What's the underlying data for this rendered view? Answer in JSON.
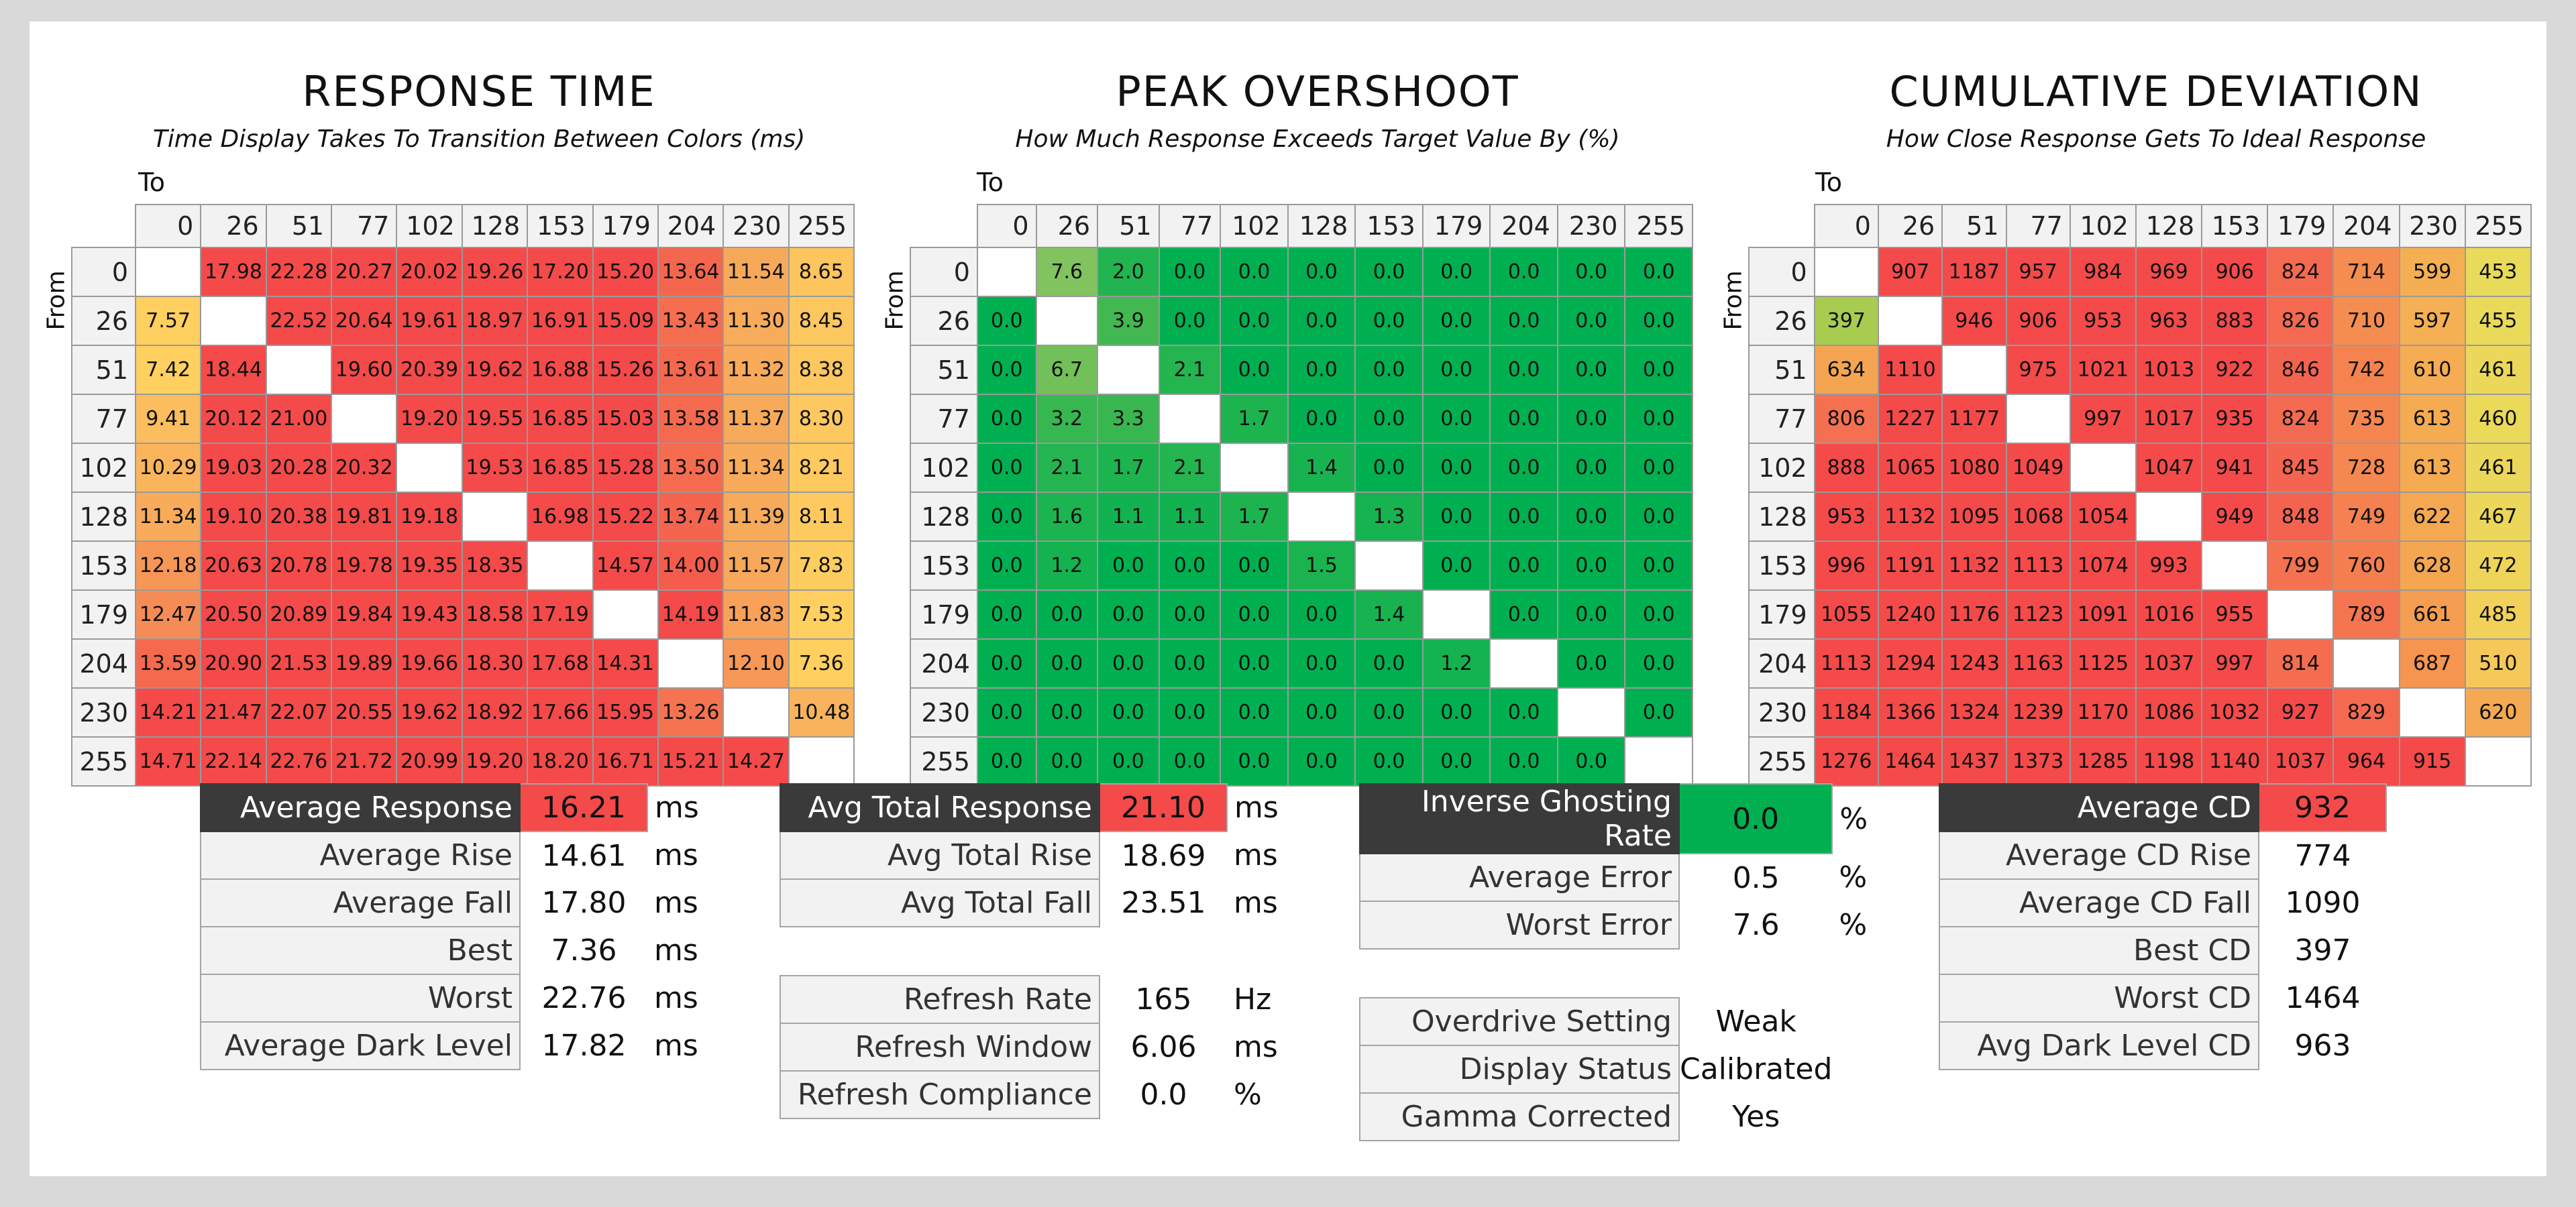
{
  "colors": {
    "red": "#f44a4a",
    "green": "#00b050",
    "yellow": "#ffe060",
    "header_dark": "#3a3a3a"
  },
  "chart_data": [
    {
      "type": "heatmap",
      "title": "RESPONSE TIME",
      "subtitle": "Time Display Takes To Transition Between Colors (ms)",
      "xlabel": "To",
      "ylabel": "From",
      "x": [
        "0",
        "26",
        "51",
        "77",
        "102",
        "128",
        "153",
        "179",
        "204",
        "230",
        "255"
      ],
      "y": [
        "0",
        "26",
        "51",
        "77",
        "102",
        "128",
        "153",
        "179",
        "204",
        "230",
        "255"
      ],
      "values": [
        [
          "",
          "17.98",
          "22.28",
          "20.27",
          "20.02",
          "19.26",
          "17.20",
          "15.20",
          "13.64",
          "11.54",
          "8.65"
        ],
        [
          "7.57",
          "",
          "22.52",
          "20.64",
          "19.61",
          "18.97",
          "16.91",
          "15.09",
          "13.43",
          "11.30",
          "8.45"
        ],
        [
          "7.42",
          "18.44",
          "",
          "19.60",
          "20.39",
          "19.62",
          "16.88",
          "15.26",
          "13.61",
          "11.32",
          "8.38"
        ],
        [
          "9.41",
          "20.12",
          "21.00",
          "",
          "19.20",
          "19.55",
          "16.85",
          "15.03",
          "13.58",
          "11.37",
          "8.30"
        ],
        [
          "10.29",
          "19.03",
          "20.28",
          "20.32",
          "",
          "19.53",
          "16.85",
          "15.28",
          "13.50",
          "11.34",
          "8.21"
        ],
        [
          "11.34",
          "19.10",
          "20.38",
          "19.81",
          "19.18",
          "",
          "16.98",
          "15.22",
          "13.74",
          "11.39",
          "8.11"
        ],
        [
          "12.18",
          "20.63",
          "20.78",
          "19.78",
          "19.35",
          "18.35",
          "",
          "14.57",
          "14.00",
          "11.57",
          "7.83"
        ],
        [
          "12.47",
          "20.50",
          "20.89",
          "19.84",
          "19.43",
          "18.58",
          "17.19",
          "",
          "14.19",
          "11.83",
          "7.53"
        ],
        [
          "13.59",
          "20.90",
          "21.53",
          "19.89",
          "19.66",
          "18.30",
          "17.68",
          "14.31",
          "",
          "12.10",
          "7.36"
        ],
        [
          "14.21",
          "21.47",
          "22.07",
          "20.55",
          "19.62",
          "18.92",
          "17.66",
          "15.95",
          "13.26",
          "",
          "10.48"
        ],
        [
          "14.71",
          "22.14",
          "22.76",
          "21.72",
          "20.99",
          "19.20",
          "18.20",
          "16.71",
          "15.21",
          "14.27",
          ""
        ]
      ],
      "color_scale": {
        "kind": "response",
        "low": 7,
        "high": 13
      }
    },
    {
      "type": "heatmap",
      "title": "PEAK OVERSHOOT",
      "subtitle": "How Much Response Exceeds Target Value By (%)",
      "xlabel": "To",
      "ylabel": "From",
      "x": [
        "0",
        "26",
        "51",
        "77",
        "102",
        "128",
        "153",
        "179",
        "204",
        "230",
        "255"
      ],
      "y": [
        "0",
        "26",
        "51",
        "77",
        "102",
        "128",
        "153",
        "179",
        "204",
        "230",
        "255"
      ],
      "values": [
        [
          "",
          "7.6",
          "2.0",
          "0.0",
          "0.0",
          "0.0",
          "0.0",
          "0.0",
          "0.0",
          "0.0",
          "0.0"
        ],
        [
          "0.0",
          "",
          "3.9",
          "0.0",
          "0.0",
          "0.0",
          "0.0",
          "0.0",
          "0.0",
          "0.0",
          "0.0"
        ],
        [
          "0.0",
          "6.7",
          "",
          "2.1",
          "0.0",
          "0.0",
          "0.0",
          "0.0",
          "0.0",
          "0.0",
          "0.0"
        ],
        [
          "0.0",
          "3.2",
          "3.3",
          "",
          "1.7",
          "0.0",
          "0.0",
          "0.0",
          "0.0",
          "0.0",
          "0.0"
        ],
        [
          "0.0",
          "2.1",
          "1.7",
          "2.1",
          "",
          "1.4",
          "0.0",
          "0.0",
          "0.0",
          "0.0",
          "0.0"
        ],
        [
          "0.0",
          "1.6",
          "1.1",
          "1.1",
          "1.7",
          "",
          "1.3",
          "0.0",
          "0.0",
          "0.0",
          "0.0"
        ],
        [
          "0.0",
          "1.2",
          "0.0",
          "0.0",
          "0.0",
          "1.5",
          "",
          "0.0",
          "0.0",
          "0.0",
          "0.0"
        ],
        [
          "0.0",
          "0.0",
          "0.0",
          "0.0",
          "0.0",
          "0.0",
          "1.4",
          "",
          "0.0",
          "0.0",
          "0.0"
        ],
        [
          "0.0",
          "0.0",
          "0.0",
          "0.0",
          "0.0",
          "0.0",
          "0.0",
          "1.2",
          "",
          "0.0",
          "0.0"
        ],
        [
          "0.0",
          "0.0",
          "0.0",
          "0.0",
          "0.0",
          "0.0",
          "0.0",
          "0.0",
          "0.0",
          "",
          "0.0"
        ],
        [
          "0.0",
          "0.0",
          "0.0",
          "0.0",
          "0.0",
          "0.0",
          "0.0",
          "0.0",
          "0.0",
          "0.0",
          ""
        ]
      ],
      "color_scale": {
        "kind": "overshoot",
        "low": 0,
        "high": 10
      }
    },
    {
      "type": "heatmap",
      "title": "CUMULATIVE DEVIATION",
      "subtitle": "How Close Response Gets To Ideal Response",
      "xlabel": "To",
      "ylabel": "From",
      "x": [
        "0",
        "26",
        "51",
        "77",
        "102",
        "128",
        "153",
        "179",
        "204",
        "230",
        "255"
      ],
      "y": [
        "0",
        "26",
        "51",
        "77",
        "102",
        "128",
        "153",
        "179",
        "204",
        "230",
        "255"
      ],
      "values": [
        [
          "",
          "907",
          "1187",
          "957",
          "984",
          "969",
          "906",
          "824",
          "714",
          "599",
          "453"
        ],
        [
          "397",
          "",
          "946",
          "906",
          "953",
          "963",
          "883",
          "826",
          "710",
          "597",
          "455"
        ],
        [
          "634",
          "1110",
          "",
          "975",
          "1021",
          "1013",
          "922",
          "846",
          "742",
          "610",
          "461"
        ],
        [
          "806",
          "1227",
          "1177",
          "",
          "997",
          "1017",
          "935",
          "824",
          "735",
          "613",
          "460"
        ],
        [
          "888",
          "1065",
          "1080",
          "1049",
          "",
          "1047",
          "941",
          "845",
          "728",
          "613",
          "461"
        ],
        [
          "953",
          "1132",
          "1095",
          "1068",
          "1054",
          "",
          "949",
          "848",
          "749",
          "622",
          "467"
        ],
        [
          "996",
          "1191",
          "1132",
          "1113",
          "1074",
          "993",
          "",
          "799",
          "760",
          "628",
          "472"
        ],
        [
          "1055",
          "1240",
          "1176",
          "1123",
          "1091",
          "1016",
          "955",
          "",
          "789",
          "661",
          "485"
        ],
        [
          "1113",
          "1294",
          "1243",
          "1163",
          "1125",
          "1037",
          "997",
          "814",
          "",
          "687",
          "510"
        ],
        [
          "1184",
          "1366",
          "1324",
          "1239",
          "1170",
          "1086",
          "1032",
          "927",
          "829",
          "",
          "620"
        ],
        [
          "1276",
          "1464",
          "1437",
          "1373",
          "1285",
          "1198",
          "1140",
          "1037",
          "964",
          "915",
          ""
        ]
      ],
      "color_scale": {
        "kind": "deviation",
        "low": 400,
        "high": 900
      }
    }
  ],
  "stats": [
    {
      "rows": [
        {
          "label": "Average Response",
          "value": "16.21",
          "unit": "ms",
          "head": true,
          "value_color": "#f44a4a"
        },
        {
          "label": "Average Rise",
          "value": "14.61",
          "unit": "ms"
        },
        {
          "label": "Average Fall",
          "value": "17.80",
          "unit": "ms"
        },
        {
          "label": "Best",
          "value": "7.36",
          "unit": "ms"
        },
        {
          "label": "Worst",
          "value": "22.76",
          "unit": "ms"
        },
        {
          "label": "Average Dark Level",
          "value": "17.82",
          "unit": "ms"
        }
      ]
    },
    {
      "rows": [
        {
          "label": "Avg Total Response",
          "value": "21.10",
          "unit": "ms",
          "head": true,
          "value_color": "#f44a4a"
        },
        {
          "label": "Avg Total Rise",
          "value": "18.69",
          "unit": "ms"
        },
        {
          "label": "Avg Total Fall",
          "value": "23.51",
          "unit": "ms"
        },
        {
          "gap": true
        },
        {
          "label": "Refresh Rate",
          "value": "165",
          "unit": "Hz"
        },
        {
          "label": "Refresh Window",
          "value": "6.06",
          "unit": "ms"
        },
        {
          "label": "Refresh Compliance",
          "value": "0.0",
          "unit": "%"
        }
      ]
    },
    {
      "rows": [
        {
          "label": "Inverse Ghosting Rate",
          "value": "0.0",
          "unit": "%",
          "head": true,
          "value_color": "#00b050"
        },
        {
          "label": "Average Error",
          "value": "0.5",
          "unit": "%"
        },
        {
          "label": "Worst Error",
          "value": "7.6",
          "unit": "%"
        },
        {
          "gap": true
        },
        {
          "label": "Overdrive Setting",
          "value": "Weak",
          "unit": ""
        },
        {
          "label": "Display Status",
          "value": "Calibrated",
          "unit": ""
        },
        {
          "label": "Gamma Corrected",
          "value": "Yes",
          "unit": ""
        }
      ]
    },
    {
      "rows": [
        {
          "label": "Average CD",
          "value": "932",
          "unit": "",
          "head": true,
          "value_color": "#f44a4a"
        },
        {
          "label": "Average CD Rise",
          "value": "774",
          "unit": ""
        },
        {
          "label": "Average CD Fall",
          "value": "1090",
          "unit": ""
        },
        {
          "label": "Best CD",
          "value": "397",
          "unit": ""
        },
        {
          "label": "Worst CD",
          "value": "1464",
          "unit": ""
        },
        {
          "label": "Avg Dark Level CD",
          "value": "963",
          "unit": ""
        }
      ]
    }
  ]
}
